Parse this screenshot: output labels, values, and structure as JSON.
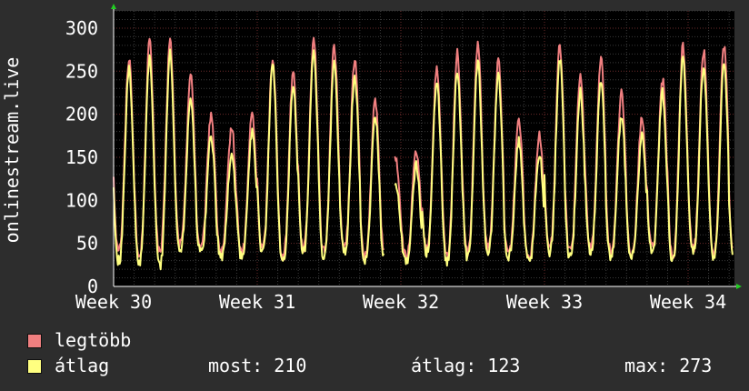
{
  "chart_data": {
    "type": "line",
    "ylabel": "onlinestream.live",
    "xlabel": "",
    "ylim": [
      0,
      320
    ],
    "yticks": [
      0,
      50,
      100,
      150,
      200,
      250,
      300
    ],
    "xticks": [
      "Week 30",
      "Week 31",
      "Week 32",
      "Week 33",
      "Week 34"
    ],
    "xlim_days": [
      0,
      35
    ],
    "grid": true,
    "legend_position": "bottom-left",
    "gaps": [
      [
        13.2,
        13.7
      ]
    ],
    "series": [
      {
        "name": "legtöbb",
        "color": "#f07f80",
        "daily_peaks": [
          265,
          285,
          285,
          245,
          200,
          185,
          200,
          265,
          250,
          290,
          280,
          265,
          215,
          150,
          155,
          250,
          270,
          280,
          260,
          195,
          175,
          280,
          245,
          265,
          225,
          195,
          240,
          280,
          275,
          280,
          210,
          175,
          255,
          275,
          265,
          185,
          235
        ],
        "daily_troughs": [
          45,
          35,
          40,
          50,
          45,
          40,
          40,
          45,
          35,
          45,
          40,
          45,
          35,
          40,
          35,
          45,
          35,
          40,
          45,
          40,
          35,
          45,
          40,
          45,
          40,
          40,
          45,
          35,
          45,
          40,
          40,
          35,
          45,
          40,
          40,
          40,
          35
        ]
      },
      {
        "name": "átlag",
        "color": "#ffff80",
        "daily_peaks": [
          255,
          265,
          270,
          220,
          175,
          155,
          180,
          255,
          230,
          270,
          260,
          245,
          195,
          120,
          140,
          240,
          250,
          260,
          245,
          170,
          155,
          265,
          225,
          240,
          200,
          175,
          225,
          265,
          255,
          260,
          185,
          160,
          240,
          255,
          245,
          165,
          210
        ],
        "daily_troughs": [
          30,
          28,
          25,
          45,
          40,
          35,
          35,
          40,
          30,
          40,
          35,
          40,
          30,
          35,
          28,
          40,
          30,
          35,
          40,
          35,
          30,
          40,
          35,
          40,
          35,
          35,
          40,
          30,
          40,
          35,
          35,
          30,
          40,
          35,
          35,
          35,
          30
        ]
      }
    ]
  },
  "legend": {
    "items": [
      {
        "label": "legtöbb",
        "color": "#f07f80"
      },
      {
        "label": "átlag",
        "color": "#ffff80"
      }
    ]
  },
  "stats": {
    "current": "most: 210",
    "average": "átlag: 123",
    "max": "max: 273"
  }
}
